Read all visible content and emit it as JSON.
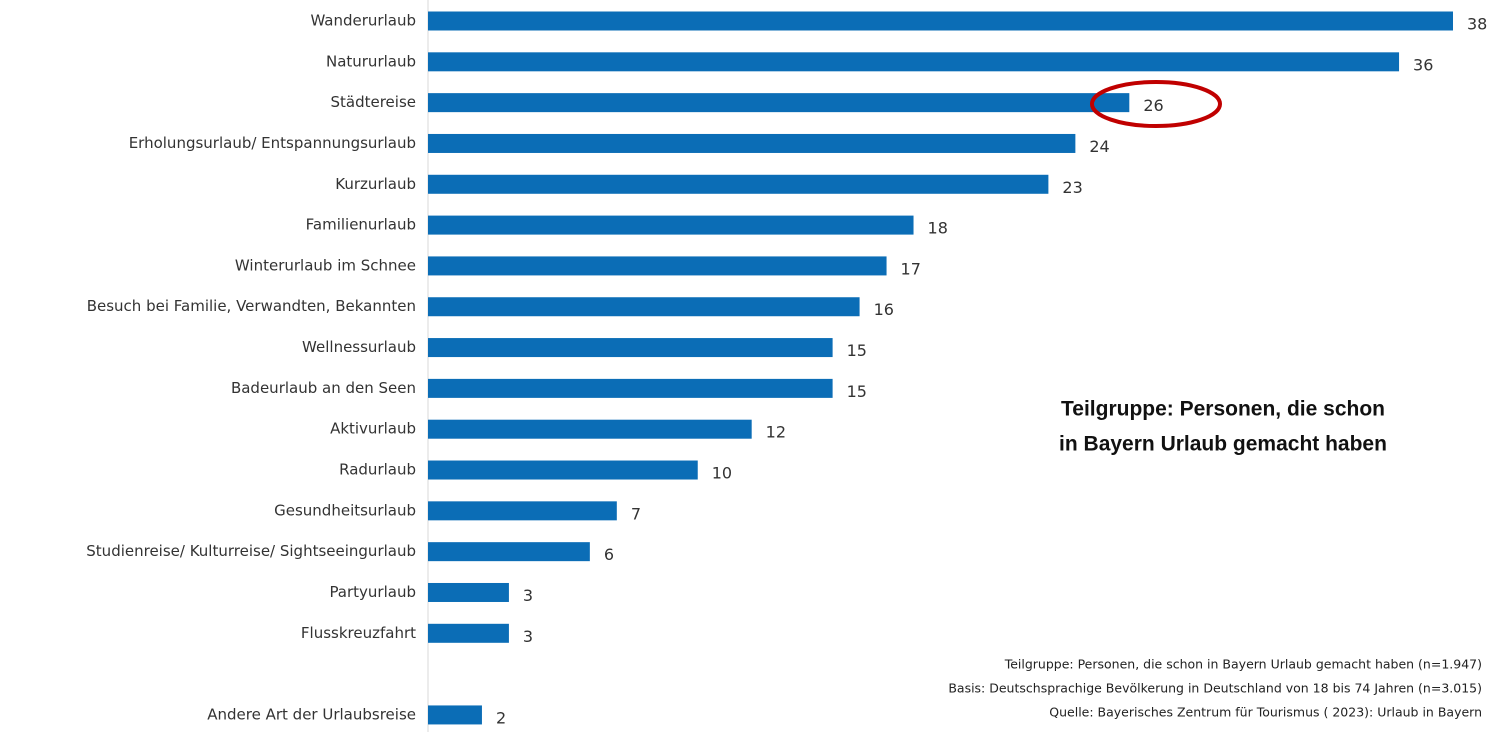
{
  "chart_data": {
    "type": "barh",
    "categories": [
      "Wanderurlaub",
      "Natururlaub",
      "Städtereise",
      "Erholungsurlaub/ Entspannungsurlaub",
      "Kurzurlaub",
      "Familienurlaub",
      "Winterurlaub im Schnee",
      "Besuch bei Familie, Verwandten, Bekannten",
      "Wellnessurlaub",
      "Badeurlaub an den Seen",
      "Aktivurlaub",
      "Radurlaub",
      "Gesundheitsurlaub",
      "Studienreise/ Kulturreise/ Sightseeingurlaub",
      "Partyurlaub",
      "Flusskreuzfahrt",
      null,
      "Andere Art der Urlaubsreise"
    ],
    "values": [
      38,
      36,
      26,
      24,
      23,
      18,
      17,
      16,
      15,
      15,
      12,
      10,
      7,
      6,
      3,
      3,
      null,
      2
    ],
    "color": "#0b6db6",
    "annotation": [
      "Teilgruppe: Personen, die schon",
      "in Bayern Urlaub gemacht haben"
    ],
    "footnotes": [
      "Teilgruppe: Personen, die schon in Bayern Urlaub gemacht haben  (n=1.947)",
      "Basis: Deutschsprachige Bevölkerung in Deutschland von 18 bis 74 Jahren (n=3.015)",
      "Quelle: Bayerisches Zentrum für Tourismus ( 2023): Urlaub in Bayern"
    ]
  }
}
